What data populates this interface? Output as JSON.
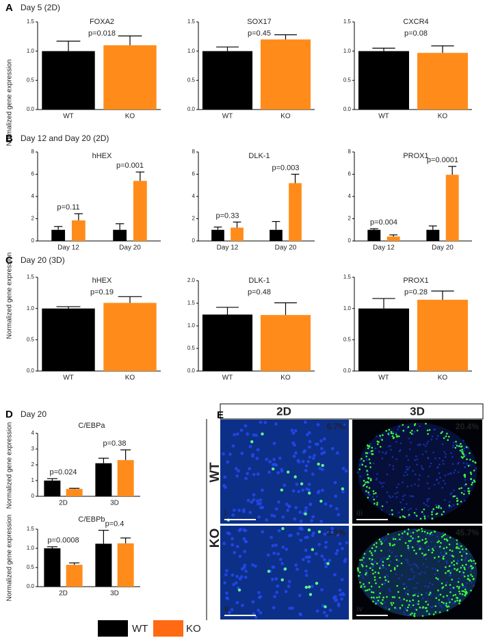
{
  "figure": {
    "panels": [
      {
        "letter": "A",
        "title": "Day 5 (2D)"
      },
      {
        "letter": "B",
        "title": "Day 12 and Day 20 (2D)"
      },
      {
        "letter": "C",
        "title": "Day 20 (3D)"
      },
      {
        "letter": "D",
        "title": "Day 20"
      },
      {
        "letter": "E"
      }
    ],
    "y_axis_labels": [
      "Normalized gene expression",
      "Normalized gene expression",
      "Normalized gene expression",
      "Normalized gene expression"
    ],
    "legend": [
      {
        "name": "WT",
        "color": "#000000"
      },
      {
        "name": "KO",
        "color": "#ff6a13"
      }
    ],
    "images": {
      "columns": [
        "2D",
        "3D"
      ],
      "rows": [
        "WT",
        "KO"
      ],
      "panels": [
        {
          "label": "i",
          "percent": "6.7%"
        },
        {
          "label": "iii",
          "percent": "20.4%"
        },
        {
          "label": "ii",
          "percent": "3.9%"
        },
        {
          "label": "iv",
          "percent": "45.7%"
        }
      ]
    }
  },
  "chart_data": [
    {
      "type": "bar",
      "title": "FOXA2",
      "categories": [
        "WT",
        "KO"
      ],
      "values": [
        1.0,
        1.1
      ],
      "errors": [
        0.17,
        0.16
      ],
      "colors": [
        "#000000",
        "#ff8c1a"
      ],
      "ylim": [
        0,
        1.5
      ],
      "yticks": [
        {
          "value": 0,
          "label": "0.0"
        },
        {
          "value": 0.5,
          "label": "0.5"
        },
        {
          "value": 1,
          "label": "1.0"
        },
        {
          "value": 1.5,
          "label": "1.5"
        }
      ],
      "annotations": [
        "p=0.018"
      ]
    },
    {
      "type": "bar",
      "title": "SOX17",
      "categories": [
        "WT",
        "KO"
      ],
      "values": [
        1.0,
        1.2
      ],
      "errors": [
        0.07,
        0.08
      ],
      "colors": [
        "#000000",
        "#ff8c1a"
      ],
      "ylim": [
        0,
        1.5
      ],
      "yticks": [
        {
          "value": 0,
          "label": "0.0"
        },
        {
          "value": 0.5,
          "label": "0.5"
        },
        {
          "value": 1,
          "label": "1.0"
        },
        {
          "value": 1.5,
          "label": "1.5"
        }
      ],
      "annotations": [
        "p=0.45"
      ]
    },
    {
      "type": "bar",
      "title": "CXCR4",
      "categories": [
        "WT",
        "KO"
      ],
      "values": [
        1.0,
        0.97
      ],
      "errors": [
        0.05,
        0.12
      ],
      "colors": [
        "#000000",
        "#ff8c1a"
      ],
      "ylim": [
        0,
        1.5
      ],
      "yticks": [
        {
          "value": 0,
          "label": "0.0"
        },
        {
          "value": 0.5,
          "label": "0.5"
        },
        {
          "value": 1,
          "label": "1.0"
        },
        {
          "value": 1.5,
          "label": "1.5"
        }
      ],
      "annotations": [
        "p=0.08"
      ]
    },
    {
      "type": "grouped_bar",
      "title": "hHEX",
      "categories": [
        "Day 12",
        "Day 20"
      ],
      "series": [
        {
          "color": "#000000",
          "values": [
            1.0,
            1.0
          ],
          "errors": [
            0.3,
            0.55
          ]
        },
        {
          "color": "#ff8c1a",
          "values": [
            1.85,
            5.4
          ],
          "errors": [
            0.6,
            0.8
          ]
        }
      ],
      "ylim": [
        0,
        8
      ],
      "yticks": [
        0,
        2,
        4,
        6,
        8
      ],
      "annotations": [
        "p=0.11",
        "p=0.001"
      ]
    },
    {
      "type": "grouped_bar",
      "title": "DLK-1",
      "categories": [
        "Day 12",
        "Day 20"
      ],
      "series": [
        {
          "color": "#000000",
          "values": [
            1.0,
            1.0
          ],
          "errors": [
            0.25,
            0.75
          ]
        },
        {
          "color": "#ff8c1a",
          "values": [
            1.2,
            5.2
          ],
          "errors": [
            0.5,
            0.8
          ]
        }
      ],
      "ylim": [
        0,
        8
      ],
      "yticks": [
        0,
        2,
        4,
        6,
        8
      ],
      "annotations": [
        "p=0.33",
        "p=0.003"
      ]
    },
    {
      "type": "grouped_bar",
      "title": "PROX1",
      "categories": [
        "Day 12",
        "Day 20"
      ],
      "series": [
        {
          "color": "#000000",
          "values": [
            1.0,
            1.0
          ],
          "errors": [
            0.1,
            0.35
          ]
        },
        {
          "color": "#ff8c1a",
          "values": [
            0.4,
            5.95
          ],
          "errors": [
            0.15,
            0.75
          ]
        }
      ],
      "ylim": [
        0,
        8
      ],
      "yticks": [
        0,
        2,
        4,
        6,
        8
      ],
      "annotations": [
        "p=0.004",
        "p=0.0001"
      ]
    },
    {
      "type": "bar",
      "title": "hHEX",
      "categories": [
        "WT",
        "KO"
      ],
      "values": [
        1.0,
        1.09
      ],
      "errors": [
        0.03,
        0.1
      ],
      "colors": [
        "#000000",
        "#ff8c1a"
      ],
      "ylim": [
        0,
        1.5
      ],
      "yticks": [
        {
          "value": 0,
          "label": "0.0"
        },
        {
          "value": 0.5,
          "label": "0.5"
        },
        {
          "value": 1,
          "label": "1.0"
        },
        {
          "value": 1.5,
          "label": "1.5"
        }
      ],
      "annotations": [
        "p=0.19"
      ]
    },
    {
      "type": "bar",
      "title": "DLK-1",
      "categories": [
        "WT",
        "KO"
      ],
      "values": [
        1.25,
        1.24
      ],
      "errors": [
        0.16,
        0.27
      ],
      "colors": [
        "#000000",
        "#ff8c1a"
      ],
      "ylim": [
        0,
        2
      ],
      "yticks": [
        {
          "value": 0,
          "label": "0.0"
        },
        {
          "value": 0.5,
          "label": "0.5"
        },
        {
          "value": 1,
          "label": "1.0"
        },
        {
          "value": 1.5,
          "label": "1.5"
        },
        {
          "value": 2,
          "label": "2.0"
        }
      ],
      "annotations": [
        "p=0.48"
      ]
    },
    {
      "type": "bar",
      "title": "PROX1",
      "categories": [
        "WT",
        "KO"
      ],
      "values": [
        1.0,
        1.14
      ],
      "errors": [
        0.16,
        0.14
      ],
      "colors": [
        "#000000",
        "#ff8c1a"
      ],
      "ylim": [
        0,
        1.5
      ],
      "yticks": [
        {
          "value": 0,
          "label": "0.0"
        },
        {
          "value": 0.5,
          "label": "0.5"
        },
        {
          "value": 1,
          "label": "1.0"
        },
        {
          "value": 1.5,
          "label": "1.5"
        }
      ],
      "annotations": [
        "p=0.28"
      ]
    },
    {
      "type": "grouped_bar",
      "title": "C/EBPa",
      "categories": [
        "2D",
        "3D"
      ],
      "series": [
        {
          "color": "#000000",
          "values": [
            1.0,
            2.1
          ],
          "errors": [
            0.12,
            0.32
          ]
        },
        {
          "color": "#ff8c1a",
          "values": [
            0.47,
            2.3
          ],
          "errors": [
            0.04,
            0.65
          ]
        }
      ],
      "ylim": [
        0,
        4
      ],
      "yticks": [
        0,
        1,
        2,
        3,
        4
      ],
      "annotations": [
        "p=0.024",
        "p=0.38"
      ]
    },
    {
      "type": "grouped_bar",
      "title": "C/EBPb",
      "categories": [
        "2D",
        "3D"
      ],
      "series": [
        {
          "color": "#000000",
          "values": [
            1.0,
            1.12
          ],
          "errors": [
            0.04,
            0.35
          ]
        },
        {
          "color": "#ff8c1a",
          "values": [
            0.57,
            1.13
          ],
          "errors": [
            0.05,
            0.14
          ]
        }
      ],
      "ylim": [
        0,
        1.5
      ],
      "yticks": [
        {
          "value": 0,
          "label": "0.0"
        },
        {
          "value": 0.5,
          "label": "0.5"
        },
        {
          "value": 1,
          "label": "1.0"
        },
        {
          "value": 1.5,
          "label": "1.5"
        }
      ],
      "annotations": [
        "p=0.0008",
        "p=0.4"
      ]
    }
  ]
}
